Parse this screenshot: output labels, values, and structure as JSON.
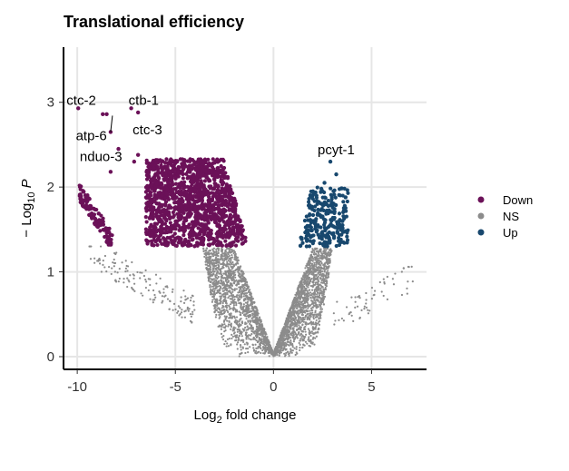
{
  "chart_data": {
    "type": "scatter",
    "title": "Translational efficiency",
    "xlabel": {
      "prefix": "Log",
      "sub": "2",
      "suffix": " fold change"
    },
    "ylabel": {
      "prefix": "− Log",
      "sub": "10",
      "suffix": " P"
    },
    "xlim": [
      -10.7,
      7.8
    ],
    "ylim": [
      -0.15,
      3.65
    ],
    "xticks": [
      -10,
      -5,
      0,
      5
    ],
    "yticks": [
      0,
      1,
      2,
      3
    ],
    "grid": true,
    "legend_position": "right",
    "colors": {
      "Down": "#6b1158",
      "NS": "#8c8c8c",
      "Up": "#18486e"
    },
    "series": [
      {
        "name": "Down",
        "color": "#6b1158"
      },
      {
        "name": "NS",
        "color": "#8c8c8c"
      },
      {
        "name": "Up",
        "color": "#18486e"
      }
    ],
    "significance_threshold_y": 1.3,
    "labeled_points": [
      {
        "label": "ctc-2",
        "x": -9.9,
        "y": 2.93
      },
      {
        "label": "ctb-1",
        "x": -7.2,
        "y": 2.93
      },
      {
        "label": "atp-6",
        "x": -8.5,
        "y": 2.85
      },
      {
        "label": "ctc-3",
        "x": -6.9,
        "y": 2.88
      },
      {
        "label": "nduo-3",
        "x": -8.3,
        "y": 2.65
      },
      {
        "label": "pcyt-1",
        "x": 2.9,
        "y": 2.3
      }
    ],
    "highlighted_points": [
      {
        "x": -9.95,
        "y": 2.93
      },
      {
        "x": -8.7,
        "y": 2.86
      },
      {
        "x": -8.5,
        "y": 2.86
      },
      {
        "x": -7.25,
        "y": 2.93
      },
      {
        "x": -6.9,
        "y": 2.88
      },
      {
        "x": -8.3,
        "y": 2.65
      },
      {
        "x": -7.9,
        "y": 2.45
      },
      {
        "x": -7.1,
        "y": 2.3
      },
      {
        "x": -8.3,
        "y": 2.18
      },
      {
        "x": -6.9,
        "y": 2.38
      },
      {
        "x": -6.2,
        "y": 1.45
      },
      {
        "x": 2.9,
        "y": 2.3
      },
      {
        "x": 3.2,
        "y": 2.15
      },
      {
        "x": 2.6,
        "y": 2.05
      }
    ],
    "scatter_regions": {
      "down_main": {
        "x_range": [
          -6.5,
          -1.3
        ],
        "y_range": [
          1.3,
          2.33
        ],
        "approx_count": 1400
      },
      "down_left": {
        "x_range": [
          -10.0,
          -8.2
        ],
        "y_range": [
          1.3,
          1.95
        ],
        "approx_count": 120
      },
      "up": {
        "x_range": [
          1.3,
          3.8
        ],
        "y_range": [
          1.3,
          2.0
        ],
        "approx_count": 260
      },
      "ns_volcano": {
        "x_range": [
          -3.5,
          3.0
        ],
        "y_range": [
          0.0,
          1.3
        ],
        "approx_count": 3200
      },
      "ns_tail_left": {
        "x_range": [
          -9.5,
          -4.0
        ],
        "y_range": [
          0.3,
          1.3
        ],
        "approx_count": 150
      },
      "ns_tail_right": {
        "x_range": [
          3.0,
          7.3
        ],
        "y_range": [
          0.3,
          1.2
        ],
        "approx_count": 60
      }
    }
  }
}
